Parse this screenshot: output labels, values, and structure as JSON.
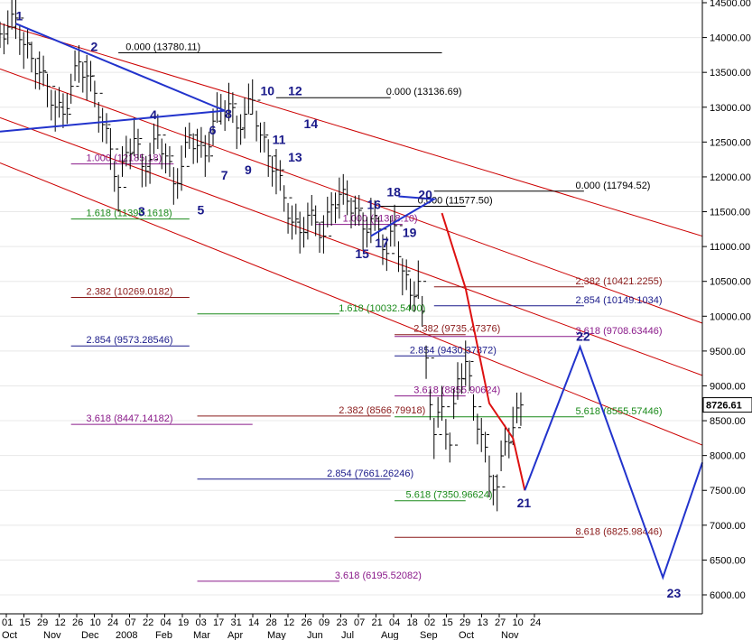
{
  "chart_data": {
    "type": "line",
    "title": "",
    "xlabel": "",
    "ylabel": "",
    "ylim": [
      5850,
      14500
    ],
    "grid": "horizontal",
    "last_price": "8726.61",
    "y_ticks": [
      "6000.00",
      "6500.00",
      "7000.00",
      "7500.00",
      "8000.00",
      "8500.00",
      "9000.00",
      "9500.00",
      "10000.00",
      "10500.00",
      "11000.00",
      "11500.00",
      "12000.00",
      "12500.00",
      "13000.00",
      "13500.00",
      "14000.00",
      "14500.00"
    ],
    "date_ticks": [
      "01",
      "15",
      "29",
      "12",
      "26",
      "10",
      "24",
      "07",
      "22",
      "04",
      "19",
      "03",
      "17",
      "31",
      "14",
      "28",
      "12",
      "26",
      "09",
      "23",
      "07",
      "21",
      "04",
      "18",
      "02",
      "15",
      "29",
      "13",
      "27",
      "10",
      "24"
    ],
    "month_labels": [
      "Oct",
      "Nov",
      "Dec",
      "2008",
      "Feb",
      "Mar",
      "Apr",
      "May",
      "Jun",
      "Jul",
      "Aug",
      "Sep",
      "Oct",
      "Nov"
    ],
    "price_series": [
      [
        0,
        14050
      ],
      [
        2,
        14150
      ],
      [
        4,
        14280
      ],
      [
        6,
        13900
      ],
      [
        8,
        13700
      ],
      [
        10,
        13500
      ],
      [
        12,
        13300
      ],
      [
        14,
        13000
      ],
      [
        16,
        12900
      ],
      [
        18,
        13300
      ],
      [
        20,
        13650
      ],
      [
        22,
        13450
      ],
      [
        24,
        13200
      ],
      [
        26,
        12750
      ],
      [
        28,
        12400
      ],
      [
        30,
        11850
      ],
      [
        32,
        12350
      ],
      [
        34,
        12550
      ],
      [
        36,
        12150
      ],
      [
        38,
        12250
      ],
      [
        40,
        12600
      ],
      [
        42,
        12300
      ],
      [
        44,
        11900
      ],
      [
        46,
        12150
      ],
      [
        48,
        12600
      ],
      [
        50,
        12450
      ],
      [
        52,
        12300
      ],
      [
        54,
        12800
      ],
      [
        56,
        12950
      ],
      [
        58,
        13050
      ],
      [
        60,
        12700
      ],
      [
        62,
        12900
      ],
      [
        64,
        13100
      ],
      [
        66,
        12600
      ],
      [
        68,
        12300
      ],
      [
        70,
        12100
      ],
      [
        72,
        11700
      ],
      [
        74,
        11350
      ],
      [
        76,
        11200
      ],
      [
        78,
        11450
      ],
      [
        80,
        11350
      ],
      [
        82,
        11150
      ],
      [
        84,
        11600
      ],
      [
        86,
        11750
      ],
      [
        88,
        11650
      ],
      [
        90,
        11550
      ],
      [
        92,
        11250
      ],
      [
        94,
        11400
      ],
      [
        96,
        11250
      ],
      [
        98,
        10900
      ],
      [
        100,
        11300
      ],
      [
        102,
        10650
      ],
      [
        104,
        10300
      ],
      [
        106,
        10500
      ],
      [
        108,
        9400
      ],
      [
        110,
        8300
      ],
      [
        112,
        8700
      ],
      [
        114,
        8150
      ],
      [
        116,
        9100
      ],
      [
        118,
        9350
      ],
      [
        120,
        8700
      ],
      [
        122,
        8300
      ],
      [
        124,
        7700
      ],
      [
        126,
        7550
      ],
      [
        128,
        8200
      ],
      [
        130,
        8400
      ],
      [
        132,
        8726
      ]
    ],
    "fib_levels": [
      {
        "label": "0.000 (13780.11)",
        "value": 13780.11,
        "color": "#000000",
        "x1": 30,
        "x2": 112,
        "tx": 33
      },
      {
        "label": "0.000 (13136.69)",
        "value": 13136.69,
        "color": "#000000",
        "x1": 70,
        "x2": 99,
        "tx": 99
      },
      {
        "label": "0.000 (11794.52)",
        "value": 11794.52,
        "color": "#000000",
        "x1": 110,
        "x2": 148,
        "tx": 147
      },
      {
        "label": "0.000 (11577.50)",
        "value": 11577.5,
        "color": "#000000",
        "x1": 96,
        "x2": 118,
        "tx": 107
      },
      {
        "label": "1.000 (12185.18)",
        "value": 12185.18,
        "color": "#8a1a8a",
        "x1": 18,
        "x2": 44,
        "tx": 23
      },
      {
        "label": "1.000 (11318.10)",
        "value": 11318.1,
        "color": "#8a1a8a",
        "x1": 80,
        "x2": 102,
        "tx": 88
      },
      {
        "label": "1.618 (11395.1618)",
        "value": 11395.16,
        "color": "#1a8a1a",
        "x1": 18,
        "x2": 48,
        "tx": 23
      },
      {
        "label": "1.618 (10032.5400)",
        "value": 10032.54,
        "color": "#1a8a1a",
        "x1": 50,
        "x2": 86,
        "tx": 87
      },
      {
        "label": "2.382 (10269.0182)",
        "value": 10269.02,
        "color": "#8a1a1a",
        "x1": 18,
        "x2": 48,
        "tx": 23
      },
      {
        "label": "2.382 (10421.2255)",
        "value": 10421.23,
        "color": "#8a1a1a",
        "x1": 110,
        "x2": 148,
        "tx": 147
      },
      {
        "label": "2.382 (9735.47376)",
        "value": 9735.47,
        "color": "#8a1a1a",
        "x1": 100,
        "x2": 118,
        "tx": 106
      },
      {
        "label": "2.382 (8566.79918)",
        "value": 8566.8,
        "color": "#8a1a1a",
        "x1": 50,
        "x2": 99,
        "tx": 87
      },
      {
        "label": "2.854 (10149.1034)",
        "value": 10149.1,
        "color": "#1a1a8a",
        "x1": 110,
        "x2": 148,
        "tx": 147
      },
      {
        "label": "2.854 (9573.28546)",
        "value": 9573.29,
        "color": "#1a1a8a",
        "x1": 18,
        "x2": 48,
        "tx": 23
      },
      {
        "label": "2.854 (9430.37872)",
        "value": 9430.38,
        "color": "#1a1a8a",
        "x1": 100,
        "x2": 118,
        "tx": 105
      },
      {
        "label": "2.854 (7661.26246)",
        "value": 7661.26,
        "color": "#1a1a8a",
        "x1": 50,
        "x2": 99,
        "tx": 84
      },
      {
        "label": "3.618 (9708.63446)",
        "value": 9708.63,
        "color": "#8a1a8a",
        "x1": 100,
        "x2": 148,
        "tx": 147
      },
      {
        "label": "3.618 (8855.90624)",
        "value": 8855.91,
        "color": "#8a1a8a",
        "x1": 100,
        "x2": 118,
        "tx": 106
      },
      {
        "label": "3.618 (8447.14182)",
        "value": 8447.14,
        "color": "#8a1a8a",
        "x1": 18,
        "x2": 64,
        "tx": 23
      },
      {
        "label": "3.618 (6195.52082)",
        "value": 6195.52,
        "color": "#8a1a8a",
        "x1": 50,
        "x2": 86,
        "tx": 86
      },
      {
        "label": "5.618 (8555.57446)",
        "value": 8555.57,
        "color": "#1a8a1a",
        "x1": 100,
        "x2": 148,
        "tx": 147
      },
      {
        "label": "5.618 (7350.96624)",
        "value": 7350.97,
        "color": "#1a8a1a",
        "x1": 100,
        "x2": 118,
        "tx": 104
      },
      {
        "label": "8.618 (6825.98446)",
        "value": 6825.98,
        "color": "#8a1a1a",
        "x1": 100,
        "x2": 148,
        "tx": 147
      }
    ],
    "wave_labels": [
      {
        "text": "1",
        "x": 4,
        "y": 14250
      },
      {
        "text": "2",
        "x": 23,
        "y": 13810
      },
      {
        "text": "3",
        "x": 35,
        "y": 11440
      },
      {
        "text": "4",
        "x": 38,
        "y": 12830
      },
      {
        "text": "5",
        "x": 50,
        "y": 11460
      },
      {
        "text": "6",
        "x": 53,
        "y": 12610
      },
      {
        "text": "7",
        "x": 56,
        "y": 11960
      },
      {
        "text": "8",
        "x": 57,
        "y": 12840
      },
      {
        "text": "9",
        "x": 62,
        "y": 12040
      },
      {
        "text": "10",
        "x": 66,
        "y": 13170
      },
      {
        "text": "11",
        "x": 69,
        "y": 12470
      },
      {
        "text": "12",
        "x": 73,
        "y": 13170
      },
      {
        "text": "13",
        "x": 73,
        "y": 12220
      },
      {
        "text": "14",
        "x": 77,
        "y": 12700
      },
      {
        "text": "15",
        "x": 90,
        "y": 10830
      },
      {
        "text": "16",
        "x": 93,
        "y": 11540
      },
      {
        "text": "17",
        "x": 95,
        "y": 10990
      },
      {
        "text": "18",
        "x": 98,
        "y": 11720
      },
      {
        "text": "19",
        "x": 102,
        "y": 11140
      },
      {
        "text": "20",
        "x": 106,
        "y": 11680
      },
      {
        "text": "21",
        "x": 131,
        "y": 7260
      },
      {
        "text": "22",
        "x": 146,
        "y": 9650
      },
      {
        "text": "23",
        "x": 169,
        "y": 5960
      }
    ],
    "projection": [
      [
        133,
        7500
      ],
      [
        147,
        9560
      ],
      [
        168,
        6250
      ],
      [
        178,
        7900
      ]
    ],
    "red_projection": [
      [
        112,
        11480
      ],
      [
        118,
        10400
      ],
      [
        124,
        8750
      ],
      [
        130,
        8250
      ],
      [
        133,
        7500
      ]
    ],
    "blue_triangle_1": [
      [
        4,
        14200
      ],
      [
        57,
        12950
      ],
      [
        0,
        12650
      ]
    ],
    "blue_triangle_2": [
      [
        94,
        11150
      ],
      [
        110,
        11680
      ],
      [
        101,
        11720
      ]
    ],
    "channel_lines": [
      [
        [
          0,
          14200
        ],
        [
          178,
          11150
        ]
      ],
      [
        [
          0,
          13550
        ],
        [
          178,
          9900
        ]
      ],
      [
        [
          0,
          12850
        ],
        [
          178,
          9150
        ]
      ],
      [
        [
          0,
          12200
        ],
        [
          178,
          8150
        ]
      ]
    ]
  }
}
